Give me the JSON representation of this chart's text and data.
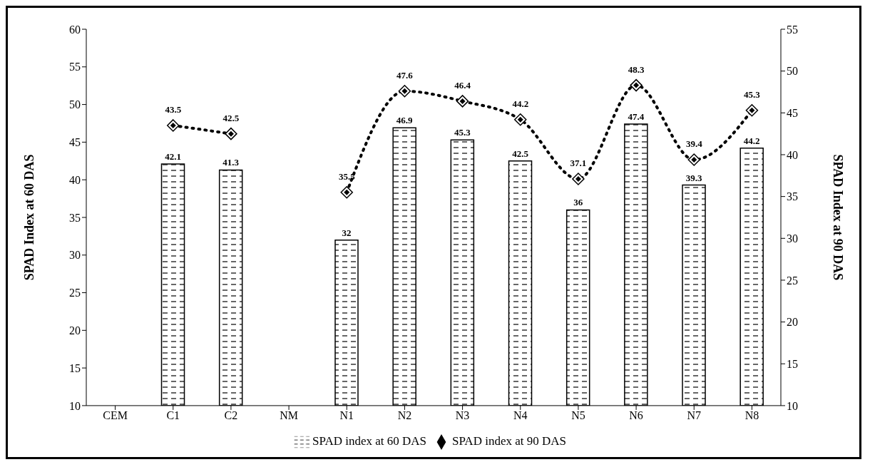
{
  "chart_data": {
    "type": "bar",
    "categories": [
      "CEM",
      "C1",
      "C2",
      "NM",
      "N1",
      "N2",
      "N3",
      "N4",
      "N5",
      "N6",
      "N7",
      "N8"
    ],
    "ylabel": "SPAD Index at 60 DAS",
    "y2label": "SPAD Index at 90 DAS",
    "ylim": [
      10,
      60
    ],
    "yticks": [
      10,
      15,
      20,
      25,
      30,
      35,
      40,
      45,
      50,
      55,
      60
    ],
    "y2lim": [
      10,
      55
    ],
    "y2ticks": [
      10,
      15,
      20,
      25,
      30,
      35,
      40,
      45,
      50,
      55
    ],
    "series": [
      {
        "name": "SPAD index at 60 DAS",
        "color": "#000000",
        "values": [
          null,
          42.1,
          41.3,
          null,
          32,
          46.9,
          45.3,
          42.5,
          36,
          47.4,
          39.3,
          44.2
        ]
      },
      {
        "name": "SPAD index at 90 DAS",
        "type": "line",
        "axis": "y2",
        "color": "#000000",
        "marker": "diamond",
        "line_style": "dotted",
        "values": [
          null,
          43.5,
          42.5,
          null,
          35.5,
          47.6,
          46.4,
          44.2,
          37.1,
          48.3,
          39.4,
          45.3
        ]
      }
    ],
    "data_labels": true,
    "grid": false,
    "legend": "bottom"
  }
}
